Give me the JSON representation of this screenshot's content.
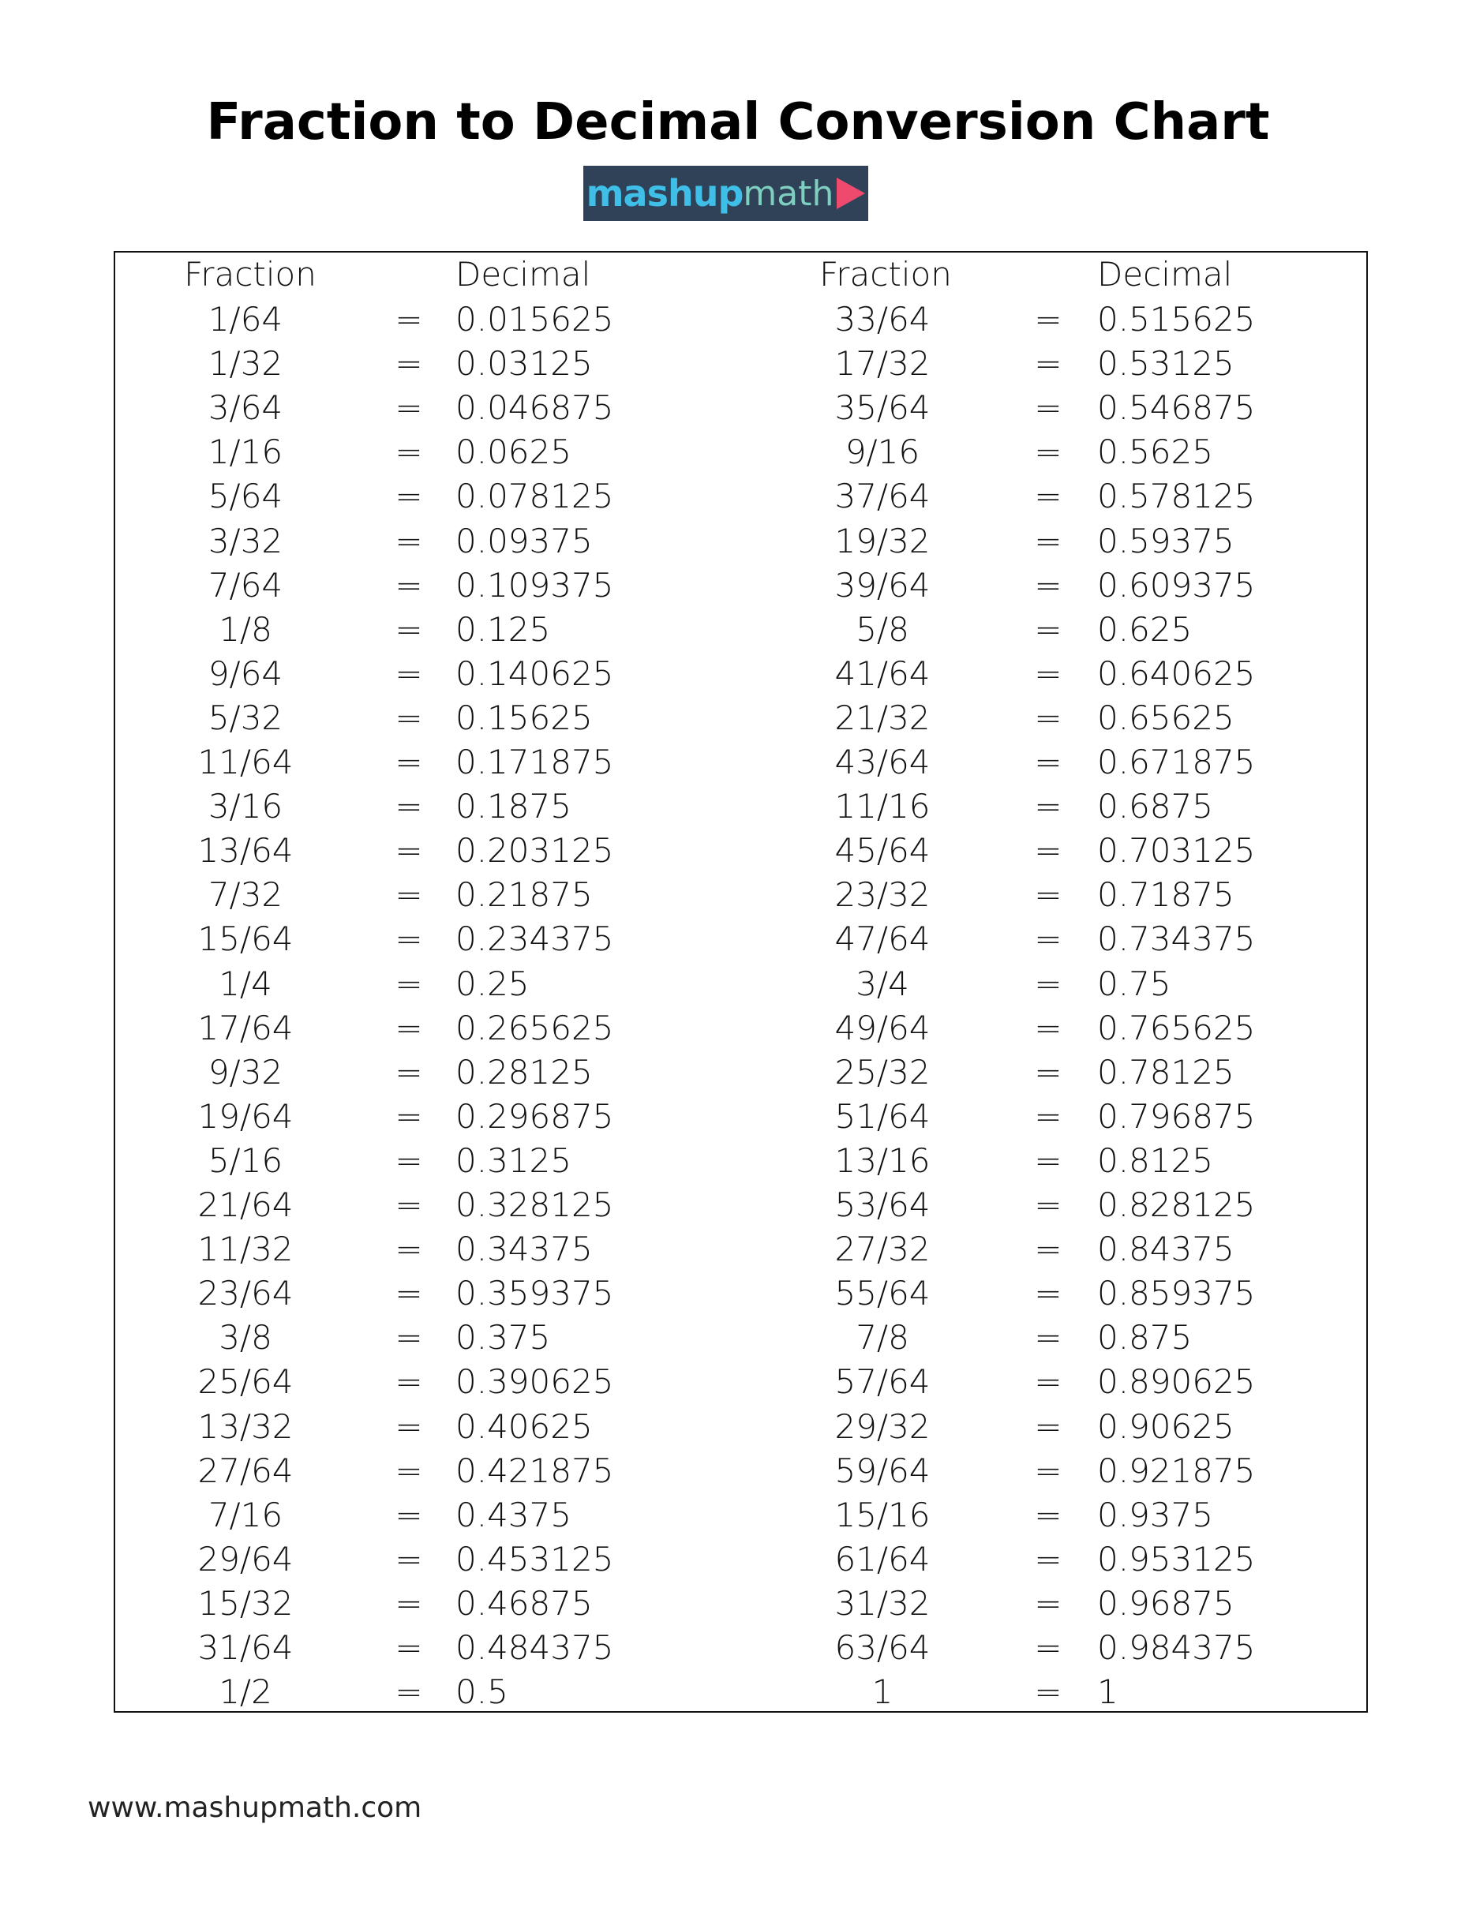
{
  "title": "Fraction to Decimal Conversion Chart",
  "logo": {
    "text_bold": "mashup",
    "text_light": "math",
    "colors": {
      "background": "#2f4257",
      "mashup": "#3fbfe8",
      "math": "#7fcfc0",
      "play": "#ee4a6e"
    },
    "icon": "play-triangle-icon"
  },
  "headers": {
    "fraction": "Fraction",
    "decimal": "Decimal"
  },
  "equals": "=",
  "left_rows": [
    [
      "1/64",
      "0.015625"
    ],
    [
      "1/32",
      "0.03125"
    ],
    [
      "3/64",
      "0.046875"
    ],
    [
      "1/16",
      "0.0625"
    ],
    [
      "5/64",
      "0.078125"
    ],
    [
      "3/32",
      "0.09375"
    ],
    [
      "7/64",
      "0.109375"
    ],
    [
      "1/8",
      "0.125"
    ],
    [
      "9/64",
      "0.140625"
    ],
    [
      "5/32",
      "0.15625"
    ],
    [
      "11/64",
      "0.171875"
    ],
    [
      "3/16",
      "0.1875"
    ],
    [
      "13/64",
      "0.203125"
    ],
    [
      "7/32",
      "0.21875"
    ],
    [
      "15/64",
      "0.234375"
    ],
    [
      "1/4",
      "0.25"
    ],
    [
      "17/64",
      "0.265625"
    ],
    [
      "9/32",
      "0.28125"
    ],
    [
      "19/64",
      "0.296875"
    ],
    [
      "5/16",
      "0.3125"
    ],
    [
      "21/64",
      "0.328125"
    ],
    [
      "11/32",
      "0.34375"
    ],
    [
      "23/64",
      "0.359375"
    ],
    [
      "3/8",
      "0.375"
    ],
    [
      "25/64",
      "0.390625"
    ],
    [
      "13/32",
      "0.40625"
    ],
    [
      "27/64",
      "0.421875"
    ],
    [
      "7/16",
      "0.4375"
    ],
    [
      "29/64",
      "0.453125"
    ],
    [
      "15/32",
      "0.46875"
    ],
    [
      "31/64",
      "0.484375"
    ],
    [
      "1/2",
      "0.5"
    ]
  ],
  "right_rows": [
    [
      "33/64",
      "0.515625"
    ],
    [
      "17/32",
      "0.53125"
    ],
    [
      "35/64",
      "0.546875"
    ],
    [
      "9/16",
      "0.5625"
    ],
    [
      "37/64",
      "0.578125"
    ],
    [
      "19/32",
      "0.59375"
    ],
    [
      "39/64",
      "0.609375"
    ],
    [
      "5/8",
      "0.625"
    ],
    [
      "41/64",
      "0.640625"
    ],
    [
      "21/32",
      "0.65625"
    ],
    [
      "43/64",
      "0.671875"
    ],
    [
      "11/16",
      "0.6875"
    ],
    [
      "45/64",
      "0.703125"
    ],
    [
      "23/32",
      "0.71875"
    ],
    [
      "47/64",
      "0.734375"
    ],
    [
      "3/4",
      "0.75"
    ],
    [
      "49/64",
      "0.765625"
    ],
    [
      "25/32",
      "0.78125"
    ],
    [
      "51/64",
      "0.796875"
    ],
    [
      "13/16",
      "0.8125"
    ],
    [
      "53/64",
      "0.828125"
    ],
    [
      "27/32",
      "0.84375"
    ],
    [
      "55/64",
      "0.859375"
    ],
    [
      "7/8",
      "0.875"
    ],
    [
      "57/64",
      "0.890625"
    ],
    [
      "29/32",
      "0.90625"
    ],
    [
      "59/64",
      "0.921875"
    ],
    [
      "15/16",
      "0.9375"
    ],
    [
      "61/64",
      "0.953125"
    ],
    [
      "31/32",
      "0.96875"
    ],
    [
      "63/64",
      "0.984375"
    ],
    [
      "1",
      "1"
    ]
  ],
  "footer": "www.mashupmath.com"
}
